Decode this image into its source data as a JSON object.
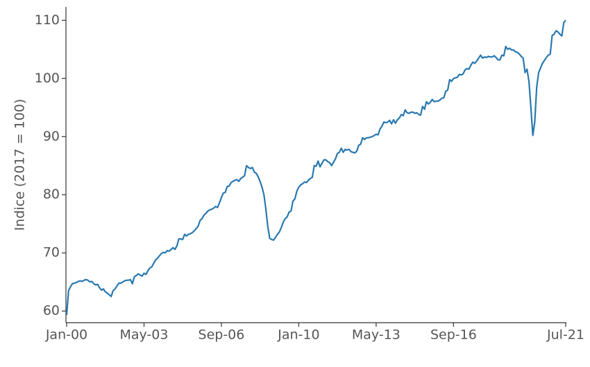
{
  "chart_data": {
    "type": "line",
    "y_label": "Indice (2017 = 100)",
    "categories": [
      "Jan-00",
      null,
      null,
      null,
      null,
      null,
      null,
      null,
      null,
      null,
      null,
      null,
      null,
      null,
      null,
      null,
      null,
      null,
      null,
      null,
      null,
      null,
      null,
      null,
      null,
      null,
      null,
      null,
      null,
      null,
      null,
      null,
      null,
      null,
      null,
      null,
      null,
      null,
      null,
      null,
      "May-03",
      null,
      null,
      null,
      null,
      null,
      null,
      null,
      null,
      null,
      null,
      null,
      null,
      null,
      null,
      null,
      null,
      null,
      null,
      null,
      null,
      null,
      null,
      null,
      null,
      null,
      null,
      null,
      null,
      null,
      null,
      null,
      null,
      null,
      null,
      null,
      null,
      null,
      null,
      null,
      "Sep-06",
      null,
      null,
      null,
      null,
      null,
      null,
      null,
      null,
      null,
      null,
      null,
      null,
      null,
      null,
      null,
      null,
      null,
      null,
      null,
      null,
      null,
      null,
      null,
      null,
      null,
      null,
      null,
      null,
      null,
      null,
      null,
      null,
      null,
      null,
      null,
      null,
      null,
      null,
      null,
      "Jan-10",
      null,
      null,
      null,
      null,
      null,
      null,
      null,
      null,
      null,
      null,
      null,
      null,
      null,
      null,
      null,
      null,
      null,
      null,
      null,
      null,
      null,
      null,
      null,
      null,
      null,
      null,
      null,
      null,
      null,
      null,
      null,
      null,
      null,
      null,
      null,
      null,
      null,
      null,
      null,
      "May-13",
      null,
      null,
      null,
      null,
      null,
      null,
      null,
      null,
      null,
      null,
      null,
      null,
      null,
      null,
      null,
      null,
      null,
      null,
      null,
      null,
      null,
      null,
      null,
      null,
      null,
      null,
      null,
      null,
      null,
      null,
      null,
      null,
      null,
      null,
      null,
      null,
      null,
      null,
      null,
      "Sep-16",
      null,
      null,
      null,
      null,
      null,
      null,
      null,
      null,
      null,
      null,
      null,
      null,
      null,
      null,
      null,
      null,
      null,
      null,
      null,
      null,
      null,
      null,
      null,
      null,
      null,
      null,
      null,
      null,
      null,
      null,
      null,
      null,
      null,
      null,
      null,
      null,
      null,
      null,
      null,
      null,
      null,
      null,
      null,
      null,
      null,
      null,
      null,
      null,
      null,
      null,
      null,
      null,
      null,
      null,
      null,
      null,
      null,
      "Jul-21"
    ],
    "series": [
      {
        "name": "Indice",
        "color": "#2878b0",
        "values": [
          59.3,
          63.5,
          64.2,
          64.7,
          64.8,
          64.9,
          65.1,
          65.2,
          65.1,
          65.3,
          65.4,
          65.3,
          65,
          65.1,
          64.7,
          64.5,
          64.6,
          64,
          63.6,
          63.8,
          63.3,
          63.1,
          62.8,
          62.5,
          63.5,
          63.8,
          64.3,
          64.8,
          64.8,
          65,
          65.2,
          65.3,
          65.3,
          65.4,
          64.7,
          65.9,
          66.1,
          66.4,
          66.2,
          66,
          66.5,
          66.3,
          66.9,
          67.4,
          67.6,
          68.2,
          68.8,
          69.1,
          69.5,
          69.9,
          70.1,
          70,
          70.4,
          70.3,
          70.6,
          70.9,
          70.6,
          71.2,
          72.4,
          72.4,
          72.3,
          73.2,
          72.9,
          73.2,
          73.3,
          73.5,
          73.8,
          74.2,
          74.6,
          75.6,
          75.9,
          76.5,
          76.8,
          77.2,
          77.4,
          77.5,
          77.7,
          78,
          77.8,
          78.6,
          79.5,
          80.3,
          80.4,
          81.4,
          81.5,
          82.1,
          82.3,
          82.5,
          82.6,
          82.3,
          82.8,
          83,
          83.3,
          85,
          84.7,
          84.5,
          84.7,
          83.9,
          83.7,
          83.1,
          82.3,
          81.3,
          80,
          77.5,
          74.5,
          72.5,
          72.3,
          72.2,
          72.7,
          73.2,
          73.6,
          74.4,
          75.3,
          75.9,
          76.2,
          77,
          77.2,
          78.9,
          79.3,
          80.6,
          81.3,
          81.7,
          81.9,
          82.2,
          82.1,
          82.5,
          82.8,
          83,
          85,
          84.9,
          85.8,
          84.8,
          85.4,
          86,
          86,
          85.7,
          85.5,
          85,
          85.6,
          86.2,
          87.1,
          87.3,
          88,
          87.3,
          87.8,
          87.7,
          87.8,
          87.4,
          87.3,
          87.2,
          87.5,
          88.5,
          88.7,
          89.8,
          89.5,
          89.8,
          89.8,
          89.9,
          90,
          90.2,
          90.4,
          90.3,
          91.3,
          91.8,
          92.5,
          92.4,
          92.5,
          92.8,
          92.2,
          92.9,
          92.3,
          92.9,
          93.2,
          93.8,
          93.6,
          94.6,
          94.1,
          94,
          94.2,
          94.2,
          94,
          94.1,
          93.8,
          93.7,
          95.2,
          94.7,
          96,
          95.6,
          95.9,
          96.4,
          96,
          96.1,
          96.1,
          96.3,
          96.6,
          96.7,
          97.8,
          98,
          99.8,
          99.5,
          100,
          100.1,
          100.2,
          100.7,
          100.6,
          100.8,
          101.5,
          101.7,
          101.6,
          102.3,
          102.8,
          102.6,
          103,
          103.5,
          104,
          103.5,
          103.7,
          103.6,
          103.8,
          103.7,
          103.7,
          103.9,
          103.6,
          103.2,
          103.2,
          104,
          103.9,
          105.5,
          105,
          105.2,
          104.9,
          104.9,
          104.6,
          104.5,
          104.2,
          103.8,
          103.5,
          101,
          101.6,
          99.5,
          95,
          90.2,
          92.5,
          98.5,
          101,
          101.8,
          102.6,
          103.1,
          103.6,
          104,
          104.2,
          107.4,
          107.6,
          108.2,
          108,
          107.6,
          107.3,
          109.6,
          110
        ]
      }
    ],
    "ylim": [
      58,
      112.3
    ],
    "yticks": [
      60,
      70,
      80,
      90,
      100,
      110
    ],
    "grid": false
  }
}
